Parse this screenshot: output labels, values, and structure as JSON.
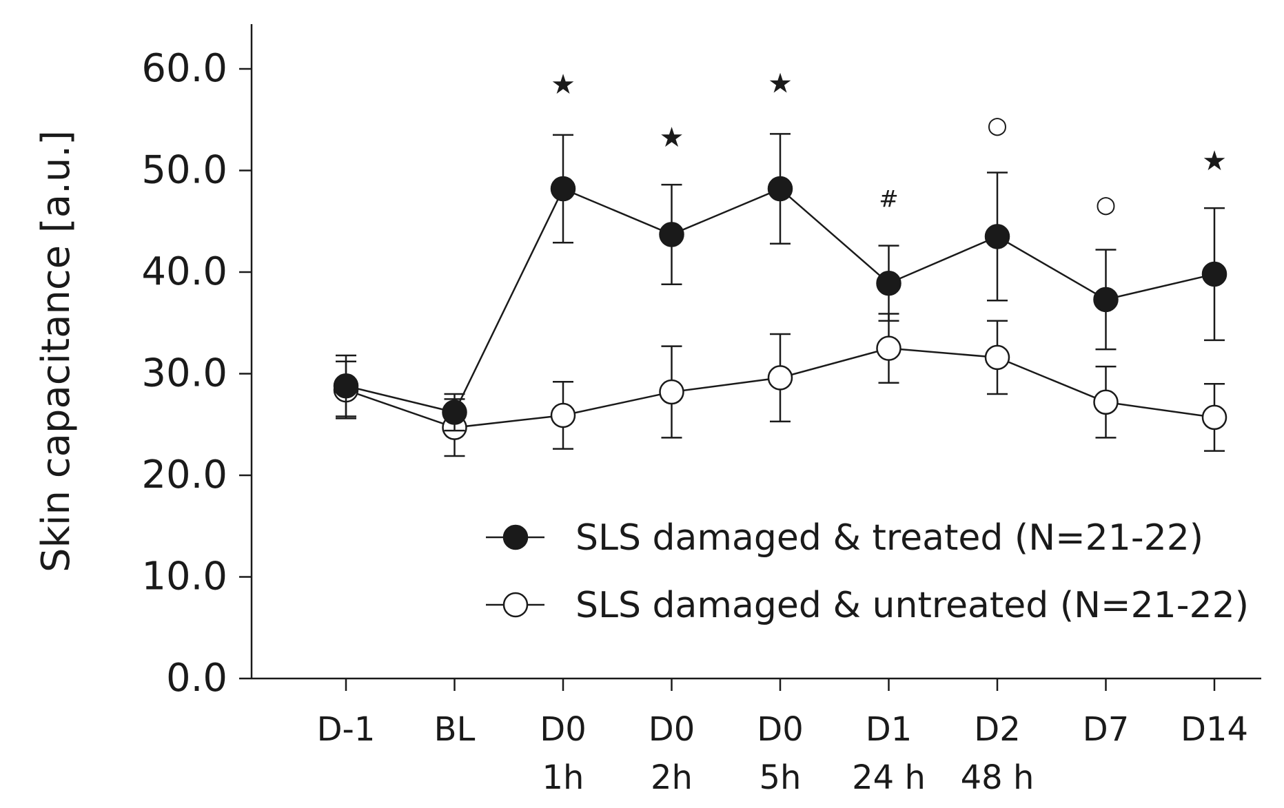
{
  "chart_data": {
    "type": "line",
    "title": "",
    "xlabel": "",
    "ylabel": "Skin capacitance [a.u.]",
    "ylim": [
      0,
      60
    ],
    "yticks": [
      "0.0",
      "10.0",
      "20.0",
      "30.0",
      "40.0",
      "50.0",
      "60.0"
    ],
    "ytick_values": [
      0,
      10,
      20,
      30,
      40,
      50,
      60
    ],
    "categories": [
      {
        "line1": "D-1",
        "line2": ""
      },
      {
        "line1": "BL",
        "line2": ""
      },
      {
        "line1": "D0",
        "line2": "1h"
      },
      {
        "line1": "D0",
        "line2": "2h"
      },
      {
        "line1": "D0",
        "line2": "5h"
      },
      {
        "line1": "D1",
        "line2": "24 h"
      },
      {
        "line1": "D2",
        "line2": "48 h"
      },
      {
        "line1": "D7",
        "line2": ""
      },
      {
        "line1": "D14",
        "line2": ""
      }
    ],
    "series": [
      {
        "name": "SLS damaged & treated (N=21-22)",
        "marker": "filled-circle",
        "values": [
          28.8,
          26.2,
          48.2,
          43.7,
          48.2,
          38.9,
          43.5,
          37.3,
          39.8
        ],
        "error": [
          3.0,
          1.8,
          5.3,
          4.9,
          5.4,
          3.7,
          6.3,
          4.9,
          6.5
        ]
      },
      {
        "name": "SLS damaged & untreated (N=21-22)",
        "marker": "open-circle",
        "values": [
          28.4,
          24.7,
          25.9,
          28.2,
          29.6,
          32.5,
          31.6,
          27.2,
          25.7
        ],
        "error": [
          2.8,
          2.8,
          3.3,
          4.5,
          4.3,
          3.4,
          3.6,
          3.5,
          3.3
        ]
      }
    ],
    "annotations": [
      {
        "category_index": 2,
        "symbol": "★",
        "value": 58.5
      },
      {
        "category_index": 3,
        "symbol": "★",
        "value": 53.3
      },
      {
        "category_index": 4,
        "symbol": "★",
        "value": 58.6
      },
      {
        "category_index": 5,
        "symbol": "#",
        "value": 47.2
      },
      {
        "category_index": 6,
        "symbol": "○",
        "value": 54.5
      },
      {
        "category_index": 7,
        "symbol": "○",
        "value": 46.7
      },
      {
        "category_index": 8,
        "symbol": "★",
        "value": 51.0
      }
    ],
    "legend": {
      "position": "bottom-right"
    },
    "colors": {
      "line": "#1a1a1a",
      "filled_marker": "#1a1a1a",
      "open_marker_fill": "#ffffff"
    }
  }
}
